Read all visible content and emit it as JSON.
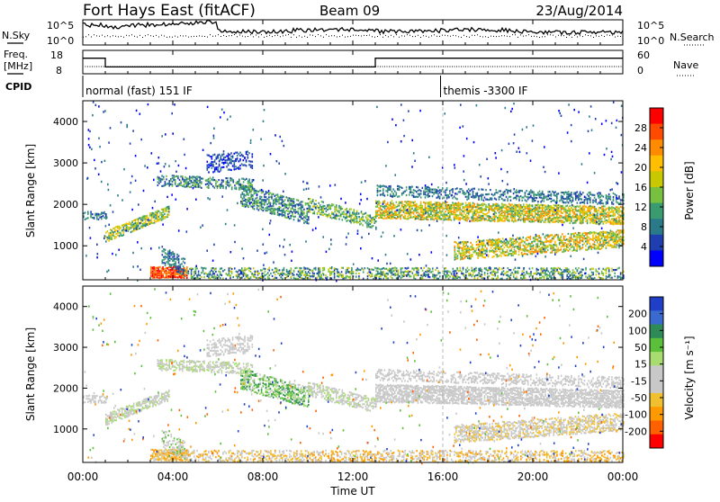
{
  "header": {
    "station": "Fort Hays East (fitACF)",
    "beam": "Beam 09",
    "date": "23/Aug/2014"
  },
  "left_labels": {
    "nsky": "N.Sky",
    "freq_top": "Freq.",
    "freq_unit": "[MHz]",
    "cpid": "CPID"
  },
  "right_labels": {
    "nsearch": "N.Search",
    "nave": "Nave"
  },
  "cpid_segments": [
    {
      "start_hour": 0,
      "label": "normal (fast) 151 IF"
    },
    {
      "start_hour": 15.9,
      "label": "themis -3300 IF"
    }
  ],
  "chart_data": [
    {
      "type": "line",
      "name": "noise",
      "yticks_left": [
        "10^5",
        "10^0"
      ],
      "yticks_right": [
        "10^5",
        "10^0"
      ]
    },
    {
      "type": "line",
      "name": "frequency",
      "yticks_left": [
        "18",
        "8"
      ],
      "yticks_right": [
        "60",
        "0"
      ],
      "freq_steps": [
        {
          "x_hours": [
            0,
            1
          ],
          "value_mhz": 15
        },
        {
          "x_hours": [
            1,
            13
          ],
          "value_mhz": 10.5
        },
        {
          "x_hours": [
            13,
            24
          ],
          "value_mhz": 15
        }
      ]
    },
    {
      "type": "heatmap",
      "name": "power",
      "ylabel": "Slant Range [km]",
      "ylim": [
        180,
        4500
      ],
      "yticks": [
        1000,
        2000,
        3000,
        4000
      ],
      "colorbar_label": "Power [dB]",
      "colorbar_ticks": [
        "28",
        "24",
        "20",
        "16",
        "12",
        "8",
        "4"
      ],
      "colorbar_colors": [
        "#ff0000",
        "#ff4a00",
        "#ff8c00",
        "#ffbf00",
        "#c8c800",
        "#78c040",
        "#3a9a70",
        "#2a7a8a",
        "#1f3fb0",
        "#0000ff"
      ]
    },
    {
      "type": "heatmap",
      "name": "velocity",
      "ylabel": "Slant Range [km]",
      "ylim": [
        180,
        4500
      ],
      "yticks": [
        1000,
        2000,
        3000,
        4000
      ],
      "colorbar_label": "Velocity [m s⁻¹]",
      "colorbar_ticks": [
        "200",
        "100",
        "50",
        "15",
        "-15",
        "-50",
        "-100",
        "-200"
      ],
      "colorbar_colors": [
        "#1f3fc8",
        "#3a6ad0",
        "#2e8b57",
        "#5cbf3a",
        "#a8dc70",
        "#c8c8c8",
        "#c8c8c8",
        "#f0c030",
        "#ff9900",
        "#ff6000",
        "#ff0000"
      ]
    }
  ],
  "xaxis": {
    "label": "Time UT",
    "ticks": [
      "00:00",
      "04:00",
      "08:00",
      "12:00",
      "16:00",
      "20:00",
      "00:00"
    ],
    "xlim_hours": [
      0,
      24
    ]
  }
}
